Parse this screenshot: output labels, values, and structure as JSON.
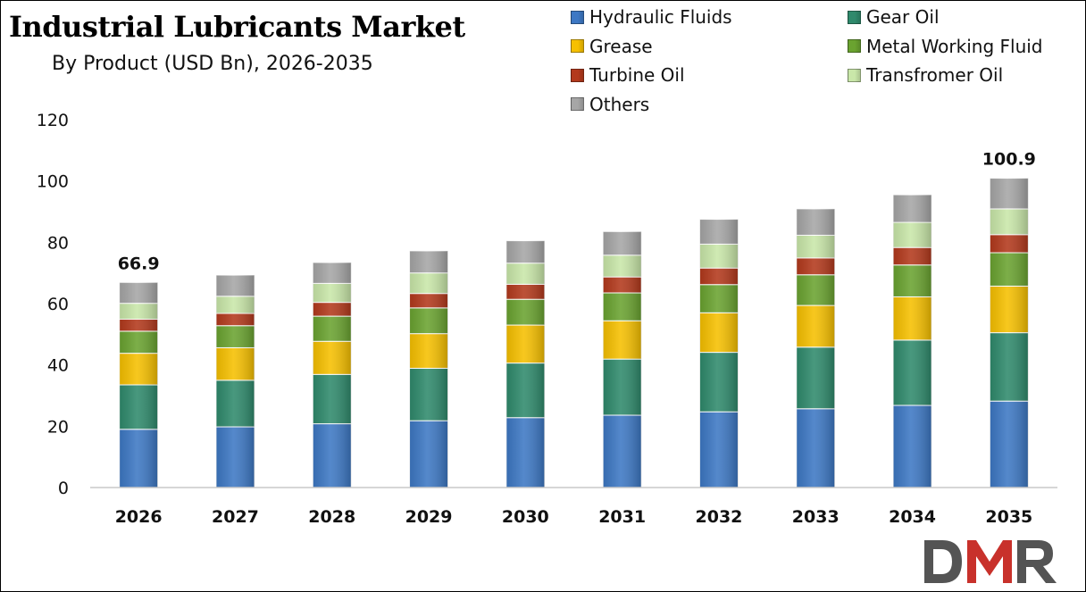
{
  "title": "Industrial Lubricants Market",
  "subtitle": "By Product (USD Bn), 2026-2035",
  "logo": {
    "text": "DMR",
    "dark": "#545454",
    "red": "#c8312b"
  },
  "chart_data": {
    "type": "bar",
    "stacked": true,
    "categories": [
      "2026",
      "2027",
      "2028",
      "2029",
      "2030",
      "2031",
      "2032",
      "2033",
      "2034",
      "2035"
    ],
    "ylim": [
      0,
      120
    ],
    "yticks": [
      "0",
      "20",
      "40",
      "60",
      "80",
      "100",
      "120"
    ],
    "xlabel": "",
    "ylabel": "",
    "grid": false,
    "legend_position": "top-right",
    "series": [
      {
        "name": "Hydraulic Fluids",
        "color": "#3d78c4",
        "values": [
          19,
          19.8,
          20.8,
          21.8,
          22.8,
          23.6,
          24.7,
          25.7,
          26.8,
          28.2
        ]
      },
      {
        "name": "Gear Oil",
        "color": "#2f8a6c",
        "values": [
          14.5,
          15.2,
          16.1,
          17.1,
          17.8,
          18.3,
          19.4,
          20.1,
          21.3,
          22.3
        ]
      },
      {
        "name": "Grease",
        "color": "#f6c000",
        "values": [
          10.3,
          10.6,
          10.8,
          11.3,
          12.4,
          12.5,
          12.9,
          13.6,
          14.1,
          15.2
        ]
      },
      {
        "name": "Metal Working Fluid",
        "color": "#6aa330",
        "values": [
          7.2,
          7.2,
          8.2,
          8.4,
          8.4,
          9.1,
          9.2,
          10.0,
          10.4,
          10.9
        ]
      },
      {
        "name": "Turbine Oil",
        "color": "#b3391c",
        "values": [
          3.9,
          4.0,
          4.5,
          4.7,
          4.9,
          5.2,
          5.4,
          5.5,
          5.7,
          5.9
        ]
      },
      {
        "name": "Transfromer Oil",
        "color": "#c9e7a9",
        "values": [
          5.2,
          5.6,
          6.2,
          6.7,
          6.9,
          7.1,
          7.8,
          7.4,
          8.2,
          8.4
        ]
      },
      {
        "name": "Others",
        "color": "#a6a6a6",
        "values": [
          6.8,
          6.9,
          6.8,
          7.2,
          7.3,
          7.7,
          8.1,
          8.6,
          9.0,
          10.0
        ]
      }
    ],
    "data_labels": [
      {
        "category": "2026",
        "text": "66.9"
      },
      {
        "category": "2035",
        "text": "100.9"
      }
    ]
  }
}
